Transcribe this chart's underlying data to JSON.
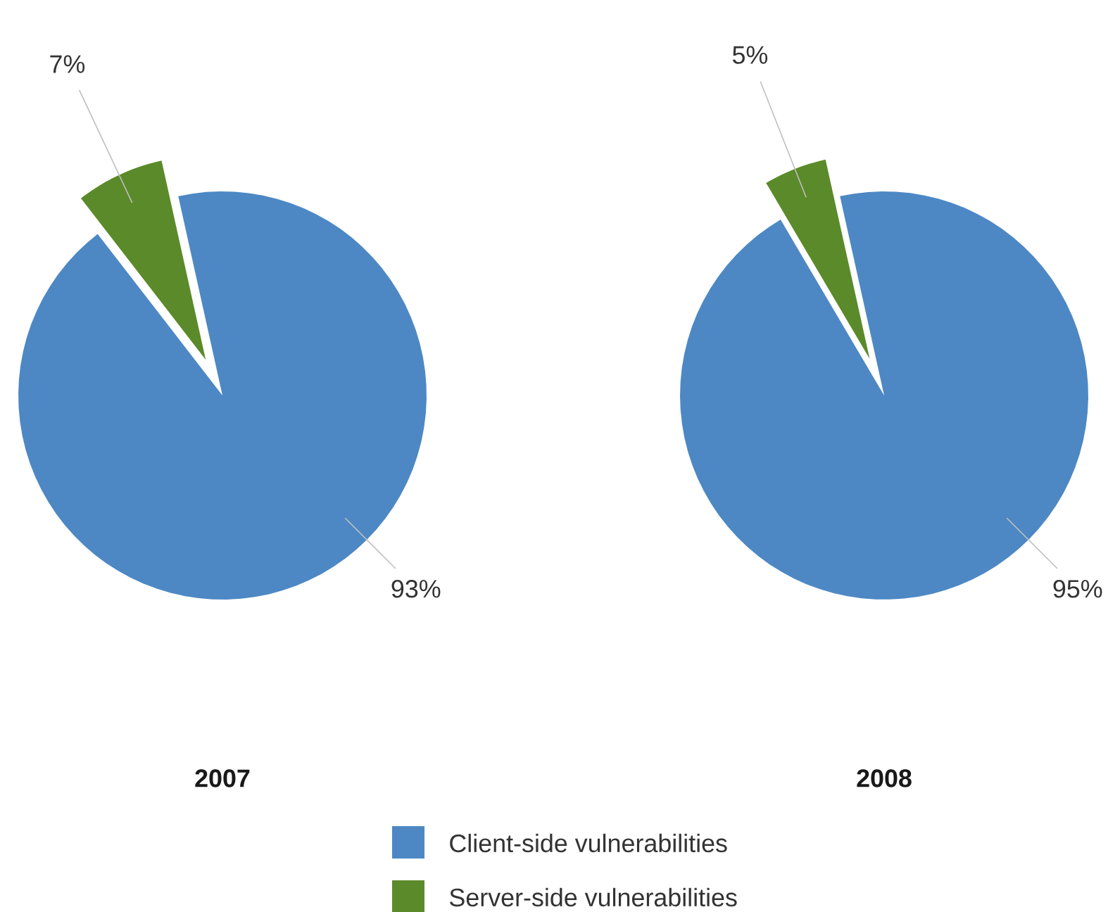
{
  "chart_data": {
    "type": "pie",
    "categories": [
      "Client-side vulnerabilities",
      "Server-side vulnerabilities"
    ],
    "colors": [
      "#4d88c4",
      "#5b8a2a"
    ],
    "legend": "bottom",
    "series": [
      {
        "name": "2007",
        "values": [
          93,
          7
        ],
        "value_labels": [
          "93%",
          "7%"
        ]
      },
      {
        "name": "2008",
        "values": [
          95,
          5
        ],
        "value_labels": [
          "95%",
          "5%"
        ]
      }
    ]
  }
}
